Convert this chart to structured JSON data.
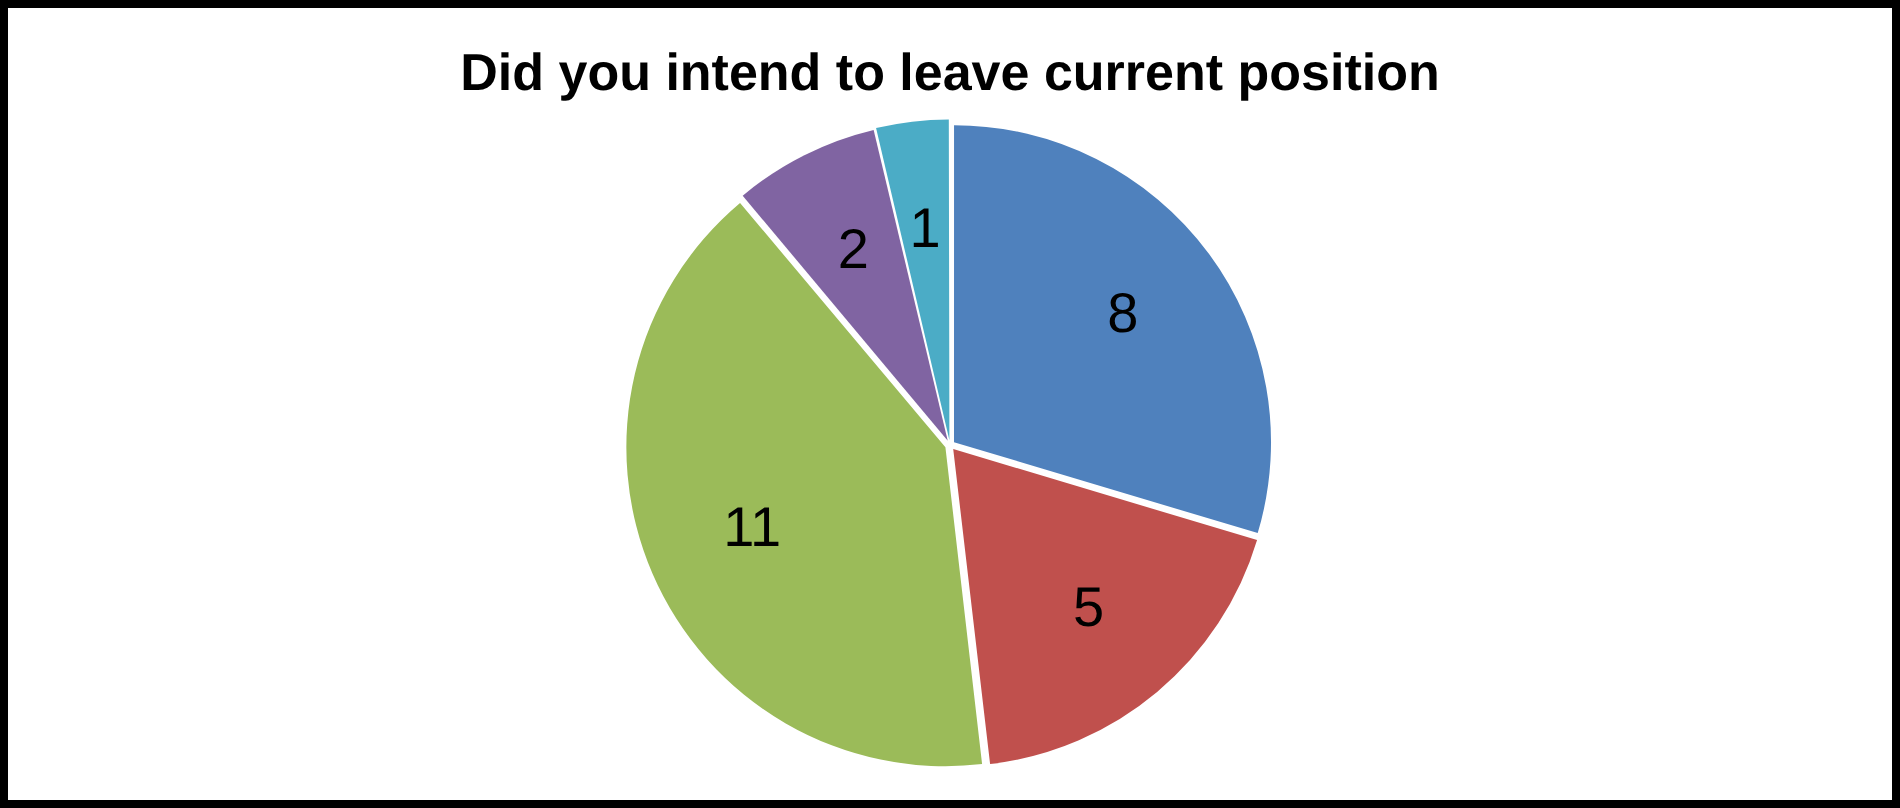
{
  "chart_data": {
    "type": "pie",
    "title": "Did you intend to leave current position",
    "categories": [
      null,
      null,
      null,
      null,
      null
    ],
    "values": [
      8,
      5,
      11,
      2,
      1
    ],
    "colors": [
      "#4f81bd",
      "#c0504d",
      "#9bbb59",
      "#8064a2",
      "#4bacc6"
    ],
    "data_labels": true,
    "legend": false
  }
}
